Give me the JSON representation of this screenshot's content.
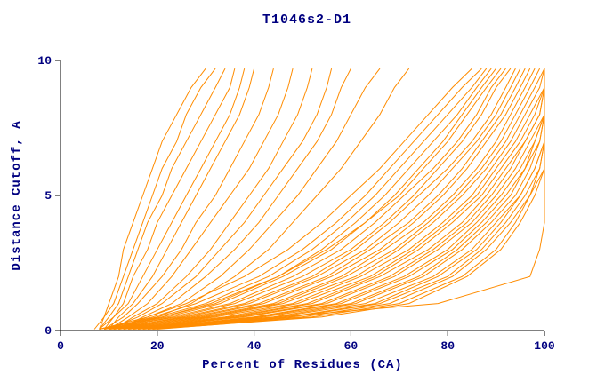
{
  "chart_data": {
    "type": "line",
    "title": "T1046s2-D1",
    "xlabel": "Percent of Residues (CA)",
    "ylabel": "Distance Cutoff, A",
    "xlim": [
      0,
      100
    ],
    "ylim": [
      0,
      10
    ],
    "xticks": [
      0,
      20,
      40,
      60,
      80,
      100
    ],
    "yticks": [
      0,
      5,
      10
    ],
    "grid": false,
    "legend_position": "none",
    "line_color": "#FF8C00",
    "axis_color": "#000000",
    "label_color": "#000080",
    "y_levels": [
      0.05,
      0.5,
      1,
      2,
      3,
      4,
      5,
      6,
      7,
      8,
      9,
      9.7
    ],
    "series": [
      {
        "x": [
          8,
          9,
          10,
          12,
          13,
          15,
          17,
          19,
          21,
          24,
          27,
          30
        ]
      },
      {
        "x": [
          7,
          9,
          11,
          13,
          15,
          17,
          19,
          21,
          24,
          26,
          29,
          32
        ]
      },
      {
        "x": [
          8,
          10,
          12,
          14,
          16,
          18,
          21,
          23,
          26,
          29,
          32,
          34
        ]
      },
      {
        "x": [
          9,
          11,
          13,
          15,
          18,
          20,
          23,
          26,
          29,
          32,
          35,
          36
        ]
      },
      {
        "x": [
          8,
          11,
          14,
          17,
          20,
          23,
          26,
          29,
          32,
          35,
          37,
          38
        ]
      },
      {
        "x": [
          10,
          12,
          15,
          19,
          22,
          25,
          28,
          31,
          34,
          37,
          39,
          40
        ]
      },
      {
        "x": [
          9,
          13,
          16,
          21,
          25,
          28,
          32,
          35,
          38,
          41,
          43,
          44
        ]
      },
      {
        "x": [
          10,
          14,
          18,
          23,
          27,
          31,
          35,
          39,
          42,
          45,
          47,
          48
        ]
      },
      {
        "x": [
          11,
          15,
          20,
          26,
          31,
          35,
          39,
          43,
          46,
          49,
          51,
          52
        ]
      },
      {
        "x": [
          10,
          16,
          21,
          28,
          33,
          38,
          42,
          46,
          50,
          53,
          55,
          56
        ]
      },
      {
        "x": [
          12,
          17,
          23,
          30,
          36,
          41,
          45,
          49,
          53,
          56,
          58,
          60
        ]
      },
      {
        "x": [
          11,
          18,
          25,
          33,
          39,
          44,
          49,
          53,
          57,
          60,
          63,
          66
        ]
      },
      {
        "x": [
          12,
          20,
          27,
          36,
          43,
          48,
          53,
          58,
          62,
          66,
          69,
          72
        ]
      },
      {
        "x": [
          8,
          18,
          26,
          38,
          47,
          54,
          60,
          66,
          71,
          76,
          81,
          85
        ]
      },
      {
        "x": [
          9,
          19,
          28,
          41,
          50,
          57,
          63,
          68,
          73,
          78,
          83,
          87
        ]
      },
      {
        "x": [
          8,
          20,
          30,
          43,
          52,
          59,
          65,
          70,
          75,
          80,
          85,
          88
        ]
      },
      {
        "x": [
          10,
          21,
          31,
          45,
          54,
          61,
          67,
          72,
          77,
          82,
          86,
          89
        ]
      },
      {
        "x": [
          9,
          22,
          33,
          46,
          56,
          63,
          69,
          74,
          79,
          83,
          87,
          90
        ]
      },
      {
        "x": [
          8,
          21,
          32,
          45,
          55,
          63,
          70,
          75,
          80,
          84,
          88,
          91
        ]
      },
      {
        "x": [
          10,
          23,
          35,
          48,
          58,
          65,
          71,
          77,
          82,
          86,
          89,
          92
        ]
      },
      {
        "x": [
          9,
          24,
          36,
          50,
          60,
          67,
          73,
          78,
          83,
          87,
          90,
          93
        ]
      },
      {
        "x": [
          11,
          25,
          38,
          52,
          61,
          68,
          74,
          80,
          85,
          89,
          92,
          94
        ]
      },
      {
        "x": [
          10,
          26,
          39,
          53,
          63,
          70,
          76,
          81,
          86,
          90,
          93,
          95
        ]
      },
      {
        "x": [
          9,
          27,
          41,
          55,
          64,
          72,
          78,
          83,
          87,
          91,
          94,
          96
        ]
      },
      {
        "x": [
          11,
          28,
          42,
          56,
          66,
          73,
          79,
          84,
          88,
          92,
          95,
          97
        ]
      },
      {
        "x": [
          10,
          29,
          44,
          58,
          67,
          75,
          81,
          86,
          90,
          93,
          96,
          98
        ]
      },
      {
        "x": [
          12,
          30,
          45,
          59,
          69,
          76,
          82,
          87,
          91,
          94,
          97,
          99
        ]
      },
      {
        "x": [
          11,
          31,
          46,
          61,
          70,
          77,
          83,
          88,
          92,
          95,
          98,
          100
        ]
      },
      {
        "x": [
          13,
          32,
          48,
          62,
          72,
          79,
          85,
          89,
          93,
          96,
          99,
          100
        ]
      },
      {
        "x": [
          12,
          34,
          49,
          64,
          73,
          80,
          86,
          90,
          94,
          97,
          100,
          100
        ]
      },
      {
        "x": [
          14,
          35,
          51,
          65,
          74,
          81,
          87,
          91,
          95,
          98,
          100,
          100
        ]
      },
      {
        "x": [
          13,
          36,
          52,
          66,
          76,
          83,
          88,
          92,
          96,
          99,
          100,
          100
        ]
      },
      {
        "x": [
          15,
          37,
          54,
          68,
          77,
          84,
          89,
          93,
          96,
          99,
          100,
          100
        ]
      },
      {
        "x": [
          14,
          38,
          55,
          69,
          78,
          85,
          90,
          94,
          97,
          100,
          100,
          100
        ]
      },
      {
        "x": [
          16,
          40,
          57,
          71,
          80,
          86,
          91,
          95,
          98,
          100,
          100,
          100
        ]
      },
      {
        "x": [
          15,
          41,
          58,
          72,
          81,
          87,
          92,
          96,
          98,
          100,
          100,
          100
        ]
      },
      {
        "x": [
          17,
          42,
          60,
          74,
          82,
          88,
          93,
          96,
          99,
          100,
          100,
          100
        ]
      },
      {
        "x": [
          16,
          44,
          61,
          75,
          83,
          89,
          94,
          97,
          99,
          100,
          100,
          100
        ]
      },
      {
        "x": [
          18,
          45,
          63,
          77,
          85,
          90,
          95,
          98,
          100,
          100,
          100,
          100
        ]
      },
      {
        "x": [
          17,
          47,
          65,
          78,
          86,
          91,
          95,
          98,
          100,
          100,
          100,
          100
        ]
      },
      {
        "x": [
          19,
          48,
          66,
          80,
          87,
          92,
          96,
          99,
          100,
          100,
          100,
          100
        ]
      },
      {
        "x": [
          18,
          50,
          68,
          81,
          88,
          93,
          97,
          99,
          100,
          100,
          100,
          100
        ]
      },
      {
        "x": [
          20,
          52,
          70,
          83,
          90,
          94,
          97,
          100,
          100,
          100,
          100,
          100
        ]
      },
      {
        "x": [
          19,
          54,
          72,
          84,
          91,
          95,
          98,
          100,
          100,
          100,
          100,
          100
        ]
      },
      {
        "x": [
          10,
          45,
          78,
          97,
          99,
          100,
          100,
          100,
          100,
          100,
          100,
          100
        ]
      }
    ]
  }
}
